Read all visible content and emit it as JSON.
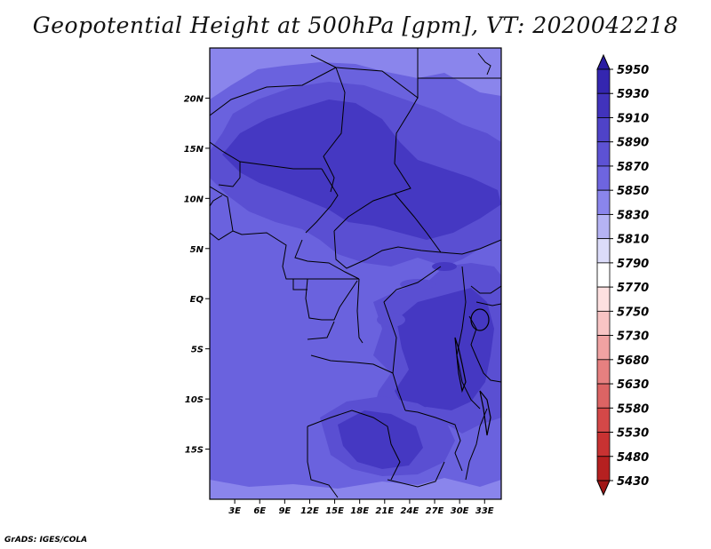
{
  "title": "Geopotential Height at 500hPa [gpm], VT: 2020042218",
  "credit": "GrADS: IGES/COLA",
  "map": {
    "lon_range": [
      0,
      35
    ],
    "lat_range": [
      -20,
      25
    ],
    "y_ticks": [
      {
        "lat": 20,
        "label": "20N"
      },
      {
        "lat": 15,
        "label": "15N"
      },
      {
        "lat": 10,
        "label": "10N"
      },
      {
        "lat": 5,
        "label": "5N"
      },
      {
        "lat": 0,
        "label": "EQ"
      },
      {
        "lat": -5,
        "label": "5S"
      },
      {
        "lat": -10,
        "label": "10S"
      },
      {
        "lat": -15,
        "label": "15S"
      }
    ],
    "x_ticks": [
      {
        "lon": 3,
        "label": "3E"
      },
      {
        "lon": 6,
        "label": "6E"
      },
      {
        "lon": 9,
        "label": "9E"
      },
      {
        "lon": 12,
        "label": "12E"
      },
      {
        "lon": 15,
        "label": "15E"
      },
      {
        "lon": 18,
        "label": "18E"
      },
      {
        "lon": 21,
        "label": "21E"
      },
      {
        "lon": 24,
        "label": "24E"
      },
      {
        "lon": 27,
        "label": "27E"
      },
      {
        "lon": 30,
        "label": "30E"
      },
      {
        "lon": 33,
        "label": "33E"
      }
    ],
    "fill_colors": {
      "5850": "#6a62de",
      "5870": "#5a4fd2",
      "5890": "#4538c2",
      "5830": "#8a85ec"
    }
  },
  "colorbar": {
    "levels": [
      "5950",
      "5930",
      "5910",
      "5890",
      "5870",
      "5850",
      "5830",
      "5810",
      "5790",
      "5770",
      "5750",
      "5730",
      "5680",
      "5630",
      "5580",
      "5530",
      "5480",
      "5430"
    ],
    "colors": [
      "#2a1ca2",
      "#3426b0",
      "#4133bc",
      "#4f43c8",
      "#5d52d4",
      "#6e65df",
      "#8a85ec",
      "#b5b3f4",
      "#dcdcfa",
      "#ffffff",
      "#fde0e0",
      "#f8c4c4",
      "#f0a2a2",
      "#e68080",
      "#dc6464",
      "#d44848",
      "#c83232",
      "#b52020",
      "#a01616"
    ]
  }
}
